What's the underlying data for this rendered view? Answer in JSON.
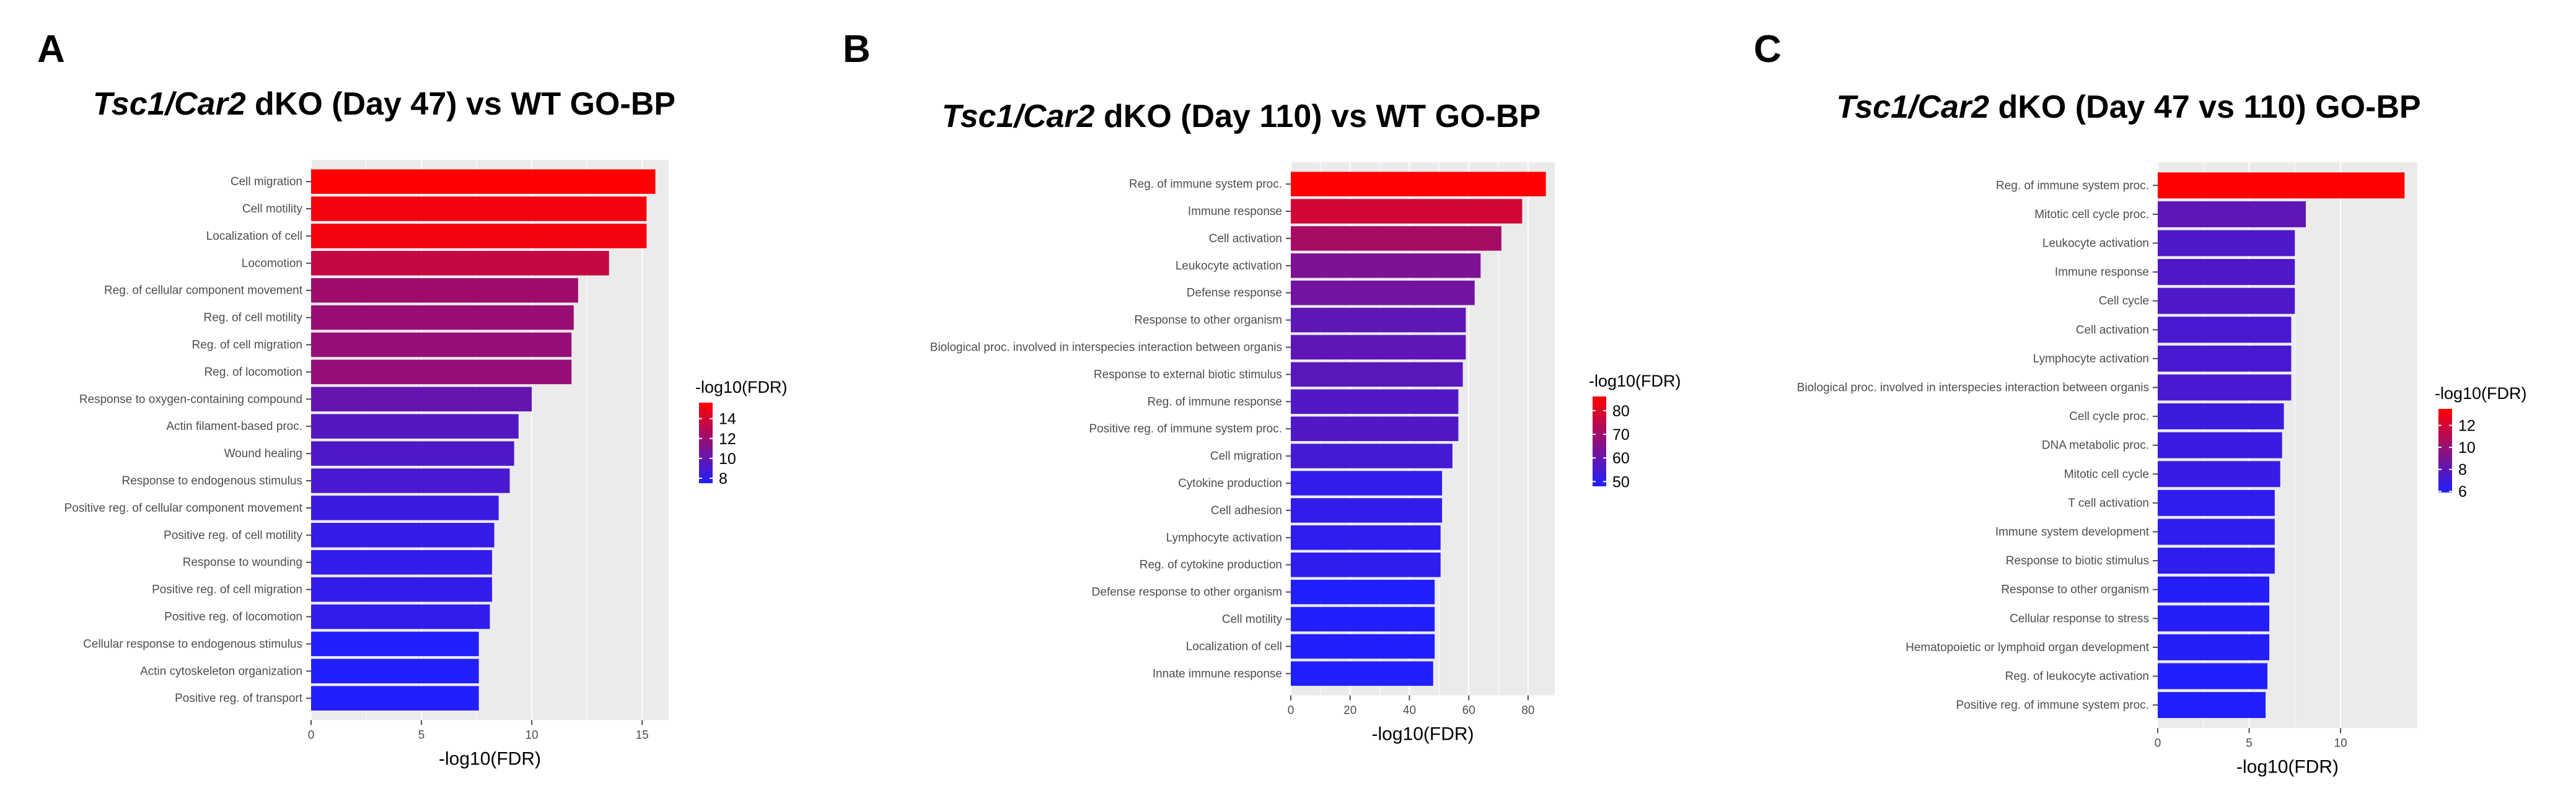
{
  "chart_data": [
    {
      "type": "bar",
      "orientation": "horizontal",
      "panel": "A",
      "title_italic": "Tsc1/Car2",
      "title_rest": " dKO (Day 47) vs WT GO-BP",
      "xlabel": "-log10(FDR)",
      "ylabel": "",
      "xlim": [
        0,
        16.2
      ],
      "xticks": [
        0,
        5,
        10,
        15
      ],
      "grid": true,
      "legend_position": "right",
      "color_scale": {
        "title": "-log10(FDR)",
        "min": 7.5,
        "max": 15.6,
        "low": "#1f1fff",
        "high": "#ff0000",
        "ticks": [
          8,
          10,
          12,
          14
        ]
      },
      "categories": [
        "Cell migration",
        "Cell motility",
        "Localization of cell",
        "Locomotion",
        "Reg. of cellular component movement",
        "Reg. of cell motility",
        "Reg. of cell migration",
        "Reg. of locomotion",
        "Response to oxygen-containing compound",
        "Actin filament-based proc.",
        "Wound healing",
        "Response to endogenous stimulus",
        "Positive reg. of cellular component movement",
        "Positive reg. of cell motility",
        "Response to wounding",
        "Positive reg. of cell migration",
        "Positive reg. of locomotion",
        "Cellular response to endogenous stimulus",
        "Actin cytoskeleton organization",
        "Positive reg. of transport"
      ],
      "values": [
        15.6,
        15.2,
        15.2,
        13.5,
        12.1,
        11.9,
        11.8,
        11.8,
        10.0,
        9.4,
        9.2,
        9.0,
        8.5,
        8.3,
        8.2,
        8.2,
        8.1,
        7.6,
        7.6,
        7.6
      ]
    },
    {
      "type": "bar",
      "orientation": "horizontal",
      "panel": "B",
      "title_italic": "Tsc1/Car2",
      "title_rest": " dKO (Day 110) vs WT GO-BP",
      "xlabel": "-log10(FDR)",
      "ylabel": "",
      "xlim": [
        0,
        89
      ],
      "xticks": [
        0,
        20,
        40,
        60,
        80
      ],
      "grid": true,
      "legend_position": "right",
      "color_scale": {
        "title": "-log10(FDR)",
        "min": 48,
        "max": 86,
        "low": "#1f1fff",
        "high": "#ff0000",
        "ticks": [
          50,
          60,
          70,
          80
        ]
      },
      "categories": [
        "Reg. of immune system proc.",
        "Immune response",
        "Cell activation",
        "Leukocyte activation",
        "Defense response",
        "Response to other organism",
        "Biological proc. involved in interspecies interaction between organis",
        "Response to external biotic stimulus",
        "Reg. of immune response",
        "Positive reg. of immune system proc.",
        "Cell migration",
        "Cytokine production",
        "Cell adhesion",
        "Lymphocyte activation",
        "Reg. of cytokine production",
        "Defense response to other organism",
        "Cell motility",
        "Localization of cell",
        "Innate immune response"
      ],
      "values": [
        86,
        78,
        71,
        64,
        62,
        59,
        59,
        58,
        56.5,
        56.5,
        54.5,
        51,
        51,
        50.5,
        50.5,
        48.5,
        48.5,
        48.5,
        48
      ]
    },
    {
      "type": "bar",
      "orientation": "horizontal",
      "panel": "C",
      "title_italic": "Tsc1/Car2",
      "title_rest": " dKO (Day 47 vs 110) GO-BP",
      "xlabel": "-log10(FDR)",
      "ylabel": "",
      "xlim": [
        0,
        14.2
      ],
      "xticks": [
        0,
        5,
        10
      ],
      "grid": true,
      "legend_position": "right",
      "color_scale": {
        "title": "-log10(FDR)",
        "min": 5.9,
        "max": 13.5,
        "low": "#1f1fff",
        "high": "#ff0000",
        "ticks": [
          6,
          8,
          10,
          12
        ]
      },
      "categories": [
        "Reg. of immune system proc.",
        "Mitotic cell cycle proc.",
        "Leukocyte activation",
        "Immune response",
        "Cell cycle",
        "Cell activation",
        "Lymphocyte activation",
        "Biological proc. involved in interspecies interaction between organis",
        "Cell cycle proc.",
        "DNA metabolic proc.",
        "Mitotic cell cycle",
        "T cell activation",
        "Immune system development",
        "Response to biotic stimulus",
        "Response to other organism",
        "Cellular response to stress",
        "Hematopoietic or lymphoid organ development",
        "Reg. of leukocyte activation",
        "Positive reg. of immune system proc."
      ],
      "values": [
        13.5,
        8.1,
        7.5,
        7.5,
        7.5,
        7.3,
        7.3,
        7.3,
        6.9,
        6.8,
        6.7,
        6.4,
        6.4,
        6.4,
        6.1,
        6.1,
        6.1,
        6.0,
        5.9
      ]
    }
  ]
}
